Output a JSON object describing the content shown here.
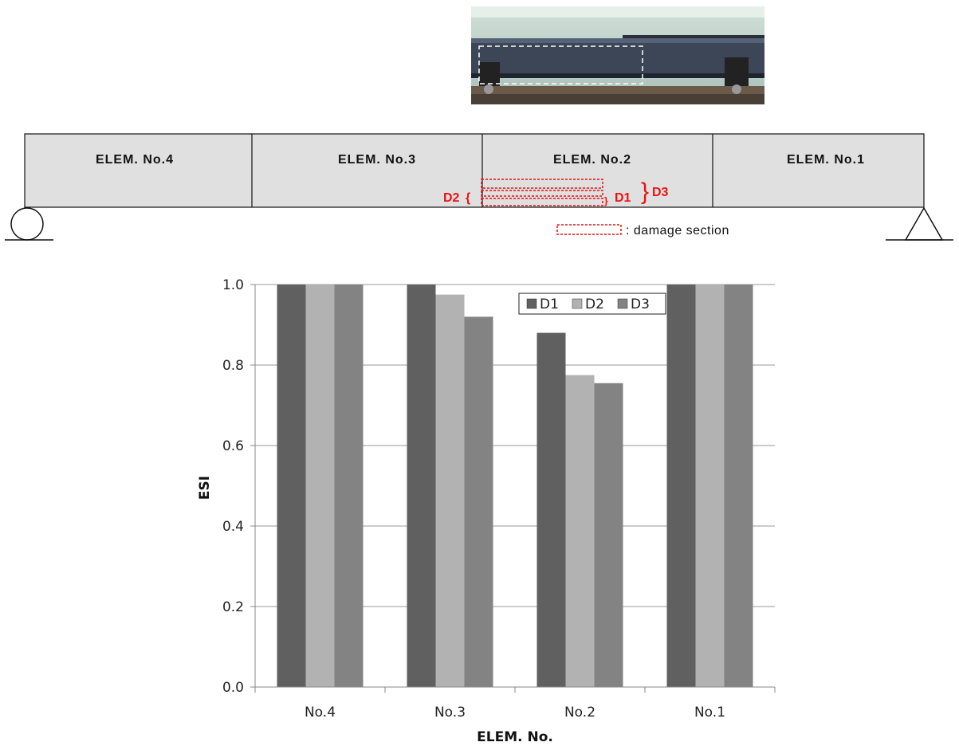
{
  "beam": {
    "elements": [
      "ELEM. No.4",
      "ELEM. No.3",
      "ELEM. No.2",
      "ELEM. No.1"
    ],
    "damage_labels": {
      "d1": "D1",
      "d2": "D2",
      "d3": "D3"
    },
    "legend_note": ": damage section"
  },
  "colors": {
    "D1": "#606060",
    "D2": "#b2b2b2",
    "D3": "#838383",
    "damage": "#ee1111",
    "beam_fill": "#e0e0e0"
  },
  "chart_data": {
    "type": "bar",
    "categories": [
      "No.4",
      "No.3",
      "No.2",
      "No.1"
    ],
    "series": [
      {
        "name": "D1",
        "values": [
          1.0,
          1.0,
          0.88,
          1.0
        ]
      },
      {
        "name": "D2",
        "values": [
          1.0,
          0.975,
          0.775,
          1.0
        ]
      },
      {
        "name": "D3",
        "values": [
          1.0,
          0.92,
          0.755,
          1.0
        ]
      }
    ],
    "title": "",
    "xlabel": "ELEM. No.",
    "ylabel": "ESI",
    "ylim": [
      0.0,
      1.0
    ],
    "yticks": [
      "0.0",
      "0.2",
      "0.4",
      "0.6",
      "0.8",
      "1.0"
    ],
    "grid": true,
    "legend": "top-right"
  }
}
